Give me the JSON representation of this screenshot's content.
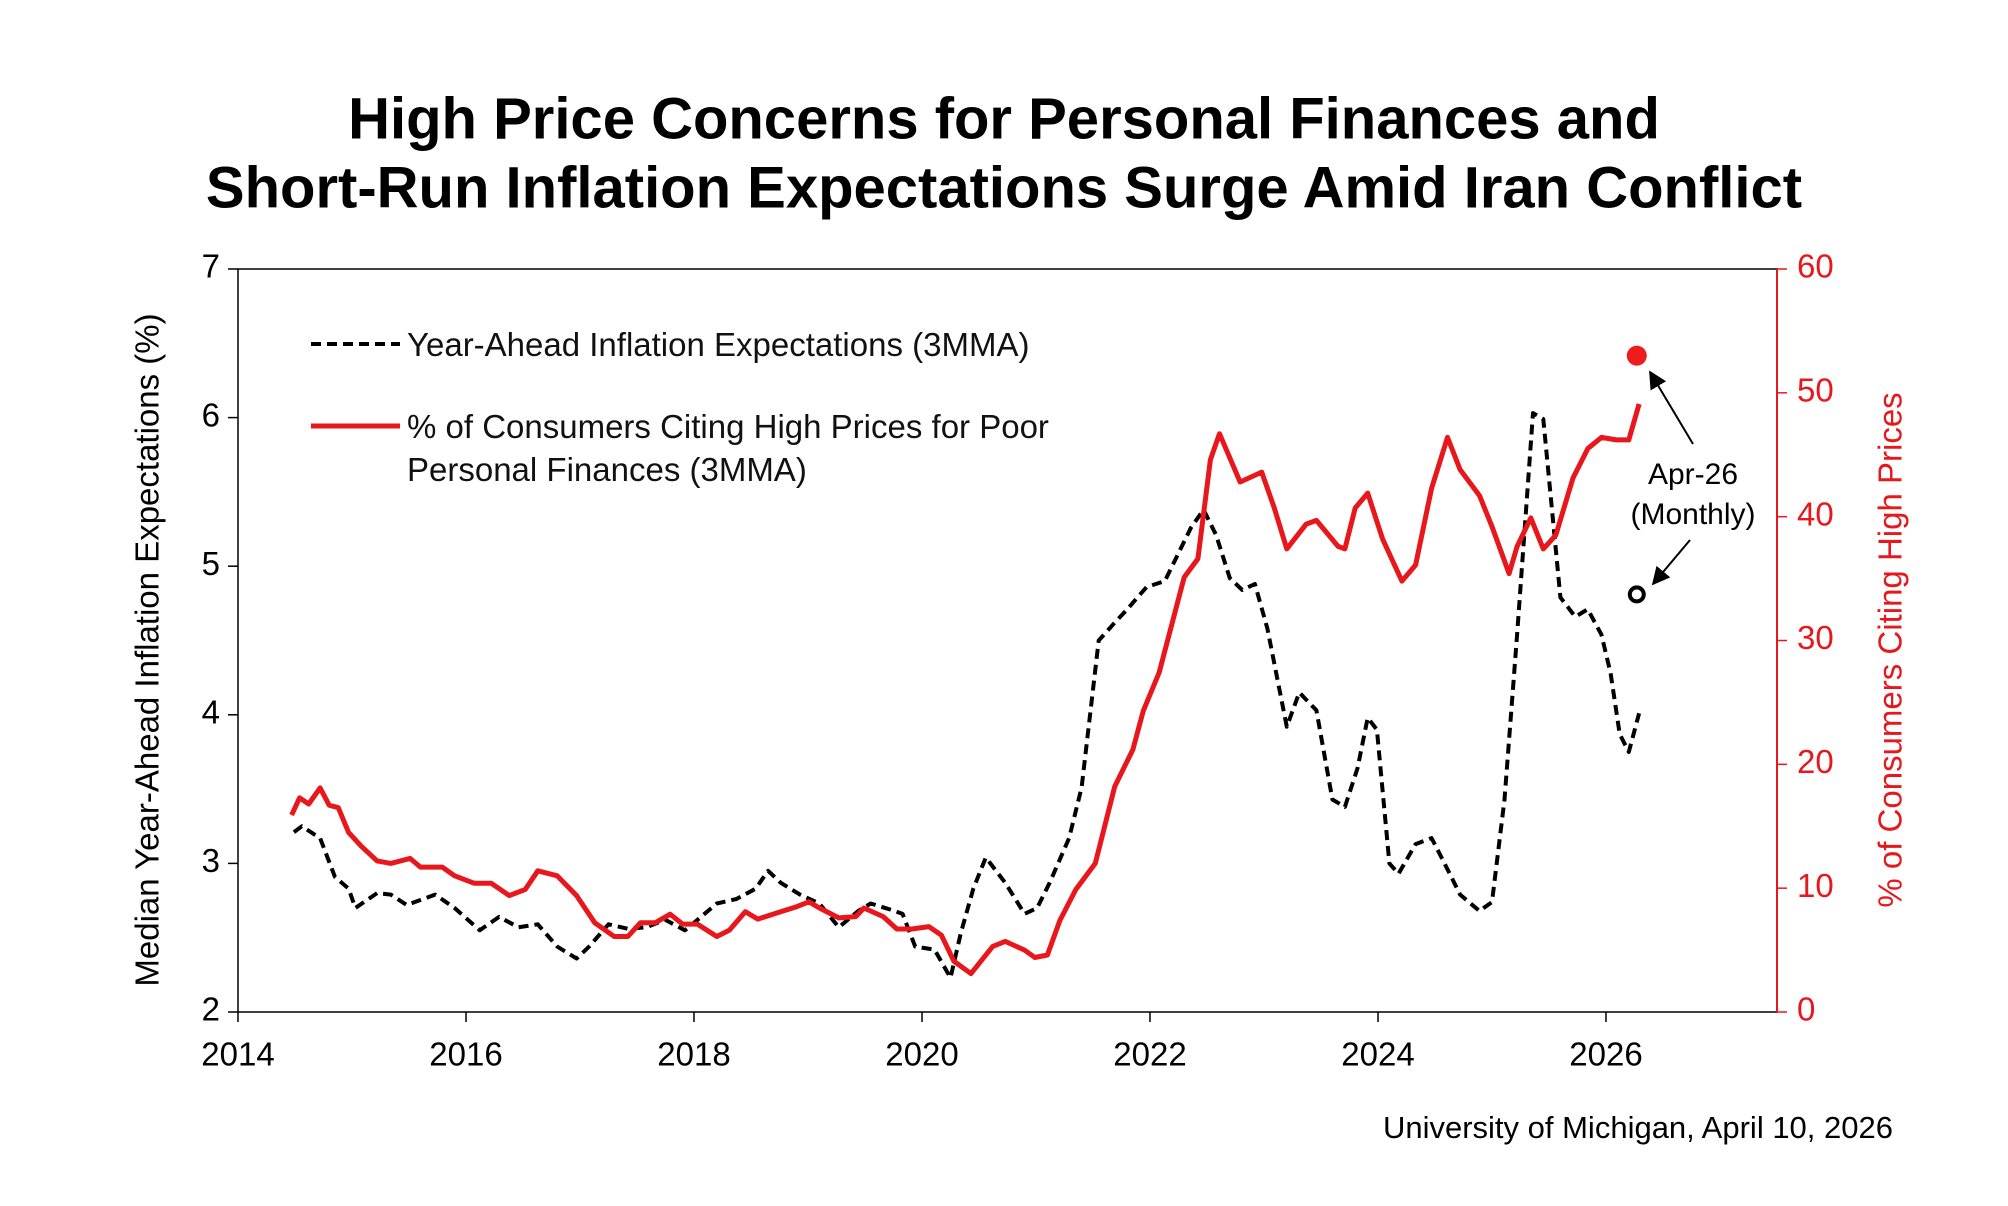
{
  "chart_data": {
    "type": "line",
    "title": [
      "High Price Concerns for Personal Finances and",
      "Short-Run Inflation Expectations Surge Amid Iran Conflict"
    ],
    "ylabel": "Median Year-Ahead Inflation Expectations (%)",
    "y2label": "% of Consumers Citing High Prices",
    "source": "University of Michigan, April 10, 2026",
    "annotation": [
      "Apr-26",
      "(Monthly)"
    ],
    "xlim": [
      2014,
      2027.5
    ],
    "xticks": [
      2014,
      2016,
      2018,
      2020,
      2022,
      2024,
      2026
    ],
    "ylim": [
      2,
      7
    ],
    "yticks": [
      2,
      3,
      4,
      5,
      6,
      7
    ],
    "y2lim": [
      0,
      60
    ],
    "y2ticks": [
      0,
      10,
      20,
      30,
      40,
      50,
      60
    ],
    "y2color": "#e8171c",
    "series": [
      {
        "name": "Year-Ahead Inflation Expectations (3MMA)",
        "color": "#000000",
        "style": "dashed",
        "x": [
          2014.49,
          2014.56,
          2014.72,
          2014.85,
          2014.97,
          2015.03,
          2015.22,
          2015.34,
          2015.48,
          2015.73,
          2015.9,
          2016.12,
          2016.29,
          2016.46,
          2016.63,
          2016.8,
          2016.97,
          2017.08,
          2017.25,
          2017.42,
          2017.58,
          2017.75,
          2017.92,
          2018.03,
          2018.2,
          2018.37,
          2018.54,
          2018.65,
          2018.76,
          2018.93,
          2019.1,
          2019.27,
          2019.44,
          2019.55,
          2019.72,
          2019.83,
          2019.94,
          2020.11,
          2020.25,
          2020.34,
          2020.45,
          2020.56,
          2020.73,
          2020.9,
          2021.01,
          2021.12,
          2021.29,
          2021.4,
          2021.55,
          2021.69,
          2021.8,
          2021.97,
          2022.13,
          2022.36,
          2022.47,
          2022.58,
          2022.7,
          2022.81,
          2022.92,
          2023.03,
          2023.2,
          2023.31,
          2023.46,
          2023.6,
          2023.71,
          2023.82,
          2023.91,
          2023.99,
          2024.1,
          2024.18,
          2024.33,
          2024.47,
          2024.61,
          2024.72,
          2024.89,
          2025.0,
          2025.11,
          2025.22,
          2025.36,
          2025.45,
          2025.6,
          2025.73,
          2025.84,
          2025.96,
          2026.04,
          2026.12,
          2026.2,
          2026.29
        ],
        "values": [
          3.21,
          3.25,
          3.17,
          2.91,
          2.83,
          2.7,
          2.8,
          2.79,
          2.72,
          2.79,
          2.7,
          2.55,
          2.64,
          2.57,
          2.59,
          2.44,
          2.36,
          2.44,
          2.59,
          2.56,
          2.57,
          2.62,
          2.55,
          2.62,
          2.73,
          2.76,
          2.83,
          2.95,
          2.87,
          2.79,
          2.73,
          2.57,
          2.68,
          2.73,
          2.69,
          2.66,
          2.44,
          2.42,
          2.23,
          2.53,
          2.83,
          3.04,
          2.87,
          2.66,
          2.7,
          2.87,
          3.17,
          3.51,
          4.5,
          4.62,
          4.71,
          4.86,
          4.9,
          5.26,
          5.38,
          5.21,
          4.92,
          4.84,
          4.88,
          4.58,
          3.92,
          4.15,
          4.03,
          3.43,
          3.38,
          3.64,
          3.98,
          3.9,
          3.0,
          2.93,
          3.13,
          3.17,
          2.96,
          2.79,
          2.68,
          2.74,
          3.43,
          4.54,
          6.03,
          5.99,
          4.79,
          4.66,
          4.71,
          4.54,
          4.28,
          3.87,
          3.75,
          4.01
        ]
      },
      {
        "name": "% of Consumers Citing High Prices for Poor Personal Finances (3MMA)",
        "color": "#e8171c",
        "style": "solid",
        "axis": "y2",
        "x": [
          2014.47,
          2014.54,
          2014.62,
          2014.72,
          2014.8,
          2014.88,
          2014.97,
          2015.08,
          2015.22,
          2015.34,
          2015.51,
          2015.6,
          2015.79,
          2015.9,
          2016.07,
          2016.22,
          2016.38,
          2016.52,
          2016.63,
          2016.8,
          2016.97,
          2017.13,
          2017.3,
          2017.42,
          2017.53,
          2017.66,
          2017.79,
          2017.9,
          2018.03,
          2018.2,
          2018.31,
          2018.45,
          2018.56,
          2018.76,
          2018.9,
          2019.01,
          2019.1,
          2019.27,
          2019.42,
          2019.49,
          2019.66,
          2019.78,
          2019.91,
          2020.06,
          2020.17,
          2020.28,
          2020.43,
          2020.62,
          2020.73,
          2020.9,
          2020.99,
          2021.1,
          2021.21,
          2021.35,
          2021.52,
          2021.69,
          2021.85,
          2021.94,
          2022.08,
          2022.3,
          2022.42,
          2022.53,
          2022.61,
          2022.79,
          2022.98,
          2023.09,
          2023.2,
          2023.37,
          2023.46,
          2023.65,
          2023.71,
          2023.8,
          2023.91,
          2024.04,
          2024.21,
          2024.33,
          2024.47,
          2024.61,
          2024.72,
          2024.89,
          2025.0,
          2025.15,
          2025.22,
          2025.34,
          2025.45,
          2025.56,
          2025.71,
          2025.84,
          2025.96,
          2026.09,
          2026.2,
          2026.29
        ],
        "values": [
          15.9,
          17.3,
          16.8,
          18.1,
          16.7,
          16.5,
          14.5,
          13.4,
          12.2,
          12.0,
          12.4,
          11.7,
          11.7,
          11.0,
          10.4,
          10.4,
          9.4,
          9.9,
          11.4,
          11.0,
          9.4,
          7.2,
          6.1,
          6.1,
          7.2,
          7.2,
          7.9,
          7.1,
          7.1,
          6.1,
          6.6,
          8.1,
          7.5,
          8.1,
          8.5,
          8.9,
          8.4,
          7.6,
          7.7,
          8.4,
          7.7,
          6.7,
          6.7,
          6.9,
          6.2,
          4.1,
          3.1,
          5.3,
          5.7,
          5.0,
          4.4,
          4.6,
          7.4,
          9.9,
          12.0,
          18.2,
          21.2,
          24.3,
          27.4,
          35.1,
          36.6,
          44.6,
          46.7,
          42.8,
          43.6,
          40.7,
          37.4,
          39.4,
          39.7,
          37.6,
          37.4,
          40.7,
          41.9,
          38.2,
          34.8,
          36.1,
          42.3,
          46.4,
          43.8,
          41.7,
          39.2,
          35.4,
          37.6,
          39.9,
          37.4,
          38.5,
          43.1,
          45.5,
          46.4,
          46.2,
          46.2,
          49.1
        ]
      }
    ],
    "points": [
      {
        "x": 2026.27,
        "value": 53.0,
        "axis": "y2",
        "color": "#ee1c1c",
        "filled": true
      },
      {
        "x": 2026.27,
        "value": 4.81,
        "color": "#000000",
        "filled": false
      }
    ]
  }
}
